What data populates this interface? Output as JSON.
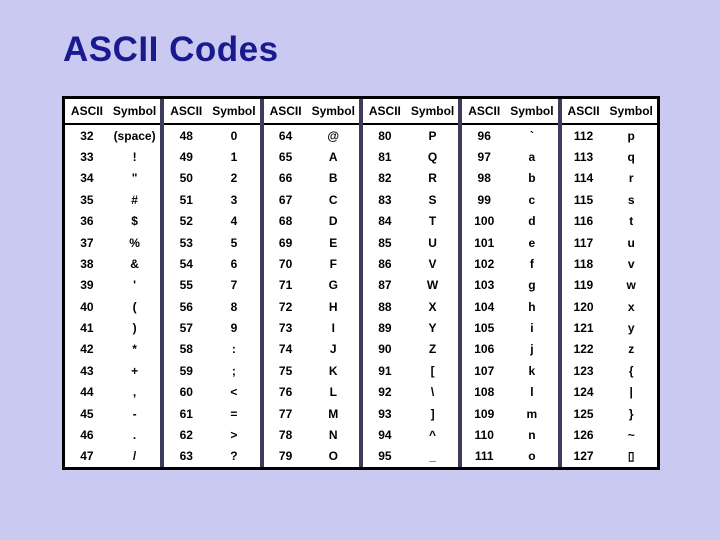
{
  "title": "ASCII Codes",
  "table": {
    "header": {
      "ascii": "ASCII",
      "symbol": "Symbol"
    },
    "groups": [
      {
        "rows": [
          {
            "code": "32",
            "symbol": "(space)"
          },
          {
            "code": "33",
            "symbol": "!"
          },
          {
            "code": "34",
            "symbol": "\""
          },
          {
            "code": "35",
            "symbol": "#"
          },
          {
            "code": "36",
            "symbol": "$"
          },
          {
            "code": "37",
            "symbol": "%"
          },
          {
            "code": "38",
            "symbol": "&"
          },
          {
            "code": "39",
            "symbol": "'"
          },
          {
            "code": "40",
            "symbol": "("
          },
          {
            "code": "41",
            "symbol": ")"
          },
          {
            "code": "42",
            "symbol": "*"
          },
          {
            "code": "43",
            "symbol": "+"
          },
          {
            "code": "44",
            "symbol": ","
          },
          {
            "code": "45",
            "symbol": "-"
          },
          {
            "code": "46",
            "symbol": "."
          },
          {
            "code": "47",
            "symbol": "/"
          }
        ]
      },
      {
        "rows": [
          {
            "code": "48",
            "symbol": "0"
          },
          {
            "code": "49",
            "symbol": "1"
          },
          {
            "code": "50",
            "symbol": "2"
          },
          {
            "code": "51",
            "symbol": "3"
          },
          {
            "code": "52",
            "symbol": "4"
          },
          {
            "code": "53",
            "symbol": "5"
          },
          {
            "code": "54",
            "symbol": "6"
          },
          {
            "code": "55",
            "symbol": "7"
          },
          {
            "code": "56",
            "symbol": "8"
          },
          {
            "code": "57",
            "symbol": "9"
          },
          {
            "code": "58",
            "symbol": ":"
          },
          {
            "code": "59",
            "symbol": ";"
          },
          {
            "code": "60",
            "symbol": "<"
          },
          {
            "code": "61",
            "symbol": "="
          },
          {
            "code": "62",
            "symbol": ">"
          },
          {
            "code": "63",
            "symbol": "?"
          }
        ]
      },
      {
        "rows": [
          {
            "code": "64",
            "symbol": "@"
          },
          {
            "code": "65",
            "symbol": "A"
          },
          {
            "code": "66",
            "symbol": "B"
          },
          {
            "code": "67",
            "symbol": "C"
          },
          {
            "code": "68",
            "symbol": "D"
          },
          {
            "code": "69",
            "symbol": "E"
          },
          {
            "code": "70",
            "symbol": "F"
          },
          {
            "code": "71",
            "symbol": "G"
          },
          {
            "code": "72",
            "symbol": "H"
          },
          {
            "code": "73",
            "symbol": "I"
          },
          {
            "code": "74",
            "symbol": "J"
          },
          {
            "code": "75",
            "symbol": "K"
          },
          {
            "code": "76",
            "symbol": "L"
          },
          {
            "code": "77",
            "symbol": "M"
          },
          {
            "code": "78",
            "symbol": "N"
          },
          {
            "code": "79",
            "symbol": "O"
          }
        ]
      },
      {
        "rows": [
          {
            "code": "80",
            "symbol": "P"
          },
          {
            "code": "81",
            "symbol": "Q"
          },
          {
            "code": "82",
            "symbol": "R"
          },
          {
            "code": "83",
            "symbol": "S"
          },
          {
            "code": "84",
            "symbol": "T"
          },
          {
            "code": "85",
            "symbol": "U"
          },
          {
            "code": "86",
            "symbol": "V"
          },
          {
            "code": "87",
            "symbol": "W"
          },
          {
            "code": "88",
            "symbol": "X"
          },
          {
            "code": "89",
            "symbol": "Y"
          },
          {
            "code": "90",
            "symbol": "Z"
          },
          {
            "code": "91",
            "symbol": "["
          },
          {
            "code": "92",
            "symbol": "\\"
          },
          {
            "code": "93",
            "symbol": "]"
          },
          {
            "code": "94",
            "symbol": "^"
          },
          {
            "code": "95",
            "symbol": "_"
          }
        ]
      },
      {
        "rows": [
          {
            "code": "96",
            "symbol": "`"
          },
          {
            "code": "97",
            "symbol": "a"
          },
          {
            "code": "98",
            "symbol": "b"
          },
          {
            "code": "99",
            "symbol": "c"
          },
          {
            "code": "100",
            "symbol": "d"
          },
          {
            "code": "101",
            "symbol": "e"
          },
          {
            "code": "102",
            "symbol": "f"
          },
          {
            "code": "103",
            "symbol": "g"
          },
          {
            "code": "104",
            "symbol": "h"
          },
          {
            "code": "105",
            "symbol": "i"
          },
          {
            "code": "106",
            "symbol": "j"
          },
          {
            "code": "107",
            "symbol": "k"
          },
          {
            "code": "108",
            "symbol": "l"
          },
          {
            "code": "109",
            "symbol": "m"
          },
          {
            "code": "110",
            "symbol": "n"
          },
          {
            "code": "111",
            "symbol": "o"
          }
        ]
      },
      {
        "rows": [
          {
            "code": "112",
            "symbol": "p"
          },
          {
            "code": "113",
            "symbol": "q"
          },
          {
            "code": "114",
            "symbol": "r"
          },
          {
            "code": "115",
            "symbol": "s"
          },
          {
            "code": "116",
            "symbol": "t"
          },
          {
            "code": "117",
            "symbol": "u"
          },
          {
            "code": "118",
            "symbol": "v"
          },
          {
            "code": "119",
            "symbol": "w"
          },
          {
            "code": "120",
            "symbol": "x"
          },
          {
            "code": "121",
            "symbol": "y"
          },
          {
            "code": "122",
            "symbol": "z"
          },
          {
            "code": "123",
            "symbol": "{"
          },
          {
            "code": "124",
            "symbol": "|"
          },
          {
            "code": "125",
            "symbol": "}"
          },
          {
            "code": "126",
            "symbol": "~"
          },
          {
            "code": "127",
            "symbol": "▯"
          }
        ]
      }
    ]
  },
  "colors": {
    "background": "#c9c9f2",
    "title": "#1a1a8f",
    "table_background": "#ffffff",
    "outer_border": "#000000",
    "group_divider": "#3c3c5c",
    "text": "#000000"
  }
}
